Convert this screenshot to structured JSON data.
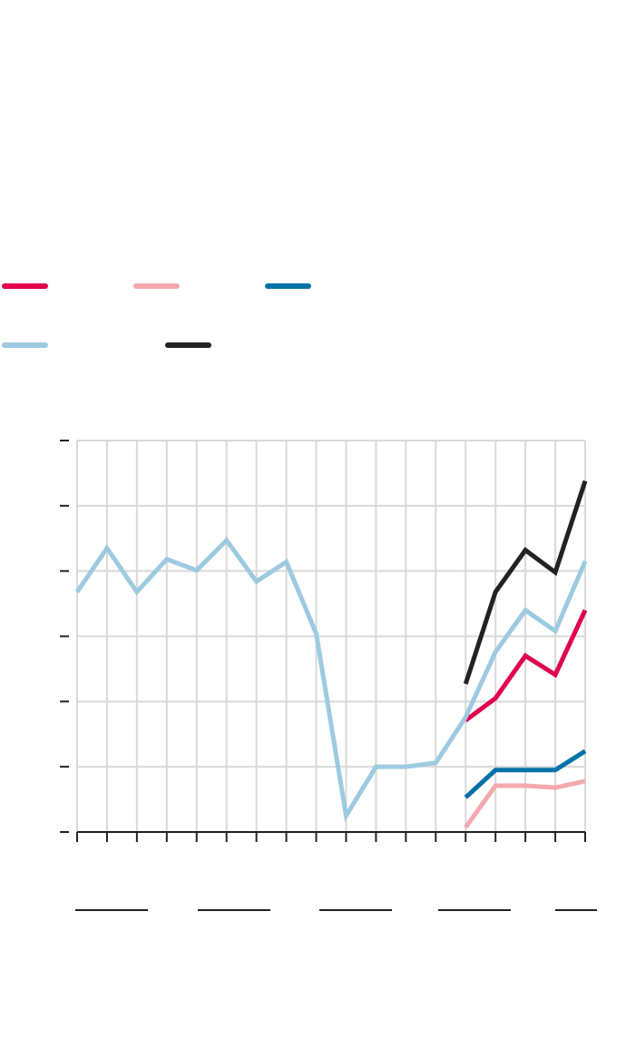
{
  "chart_data": {
    "type": "line",
    "categories": [
      null,
      null,
      null,
      null,
      null,
      null,
      null,
      null,
      null,
      null,
      null,
      null,
      null,
      null,
      null,
      null,
      null,
      null
    ],
    "series": [
      {
        "color": "#e0004d",
        "values": [
          null,
          null,
          null,
          null,
          null,
          null,
          null,
          null,
          null,
          null,
          null,
          null,
          null,
          1.71,
          2.05,
          2.7,
          2.41,
          3.4
        ]
      },
      {
        "color": "#f4a9ae",
        "values": [
          null,
          null,
          null,
          null,
          null,
          null,
          null,
          null,
          null,
          null,
          null,
          null,
          null,
          0.07,
          0.71,
          0.71,
          0.68,
          0.78
        ]
      },
      {
        "color": "#0072a8",
        "values": [
          null,
          null,
          null,
          null,
          null,
          null,
          null,
          null,
          null,
          null,
          null,
          null,
          null,
          0.53,
          0.95,
          0.95,
          0.95,
          1.24
        ]
      },
      {
        "color": "#9ecae1",
        "values": [
          3.68,
          4.35,
          3.68,
          4.18,
          4.01,
          4.47,
          3.84,
          4.14,
          3.04,
          0.25,
          1.0,
          1.0,
          1.06,
          1.76,
          2.76,
          3.4,
          3.08,
          4.15
        ]
      },
      {
        "color": "#222222",
        "values": [
          null,
          null,
          null,
          null,
          null,
          null,
          null,
          null,
          null,
          null,
          null,
          null,
          null,
          2.27,
          3.68,
          4.32,
          3.98,
          5.38
        ]
      }
    ],
    "ylim": [
      0,
      6
    ],
    "yticks": [
      0,
      1,
      2,
      3,
      4,
      5,
      6
    ],
    "grid": true
  }
}
